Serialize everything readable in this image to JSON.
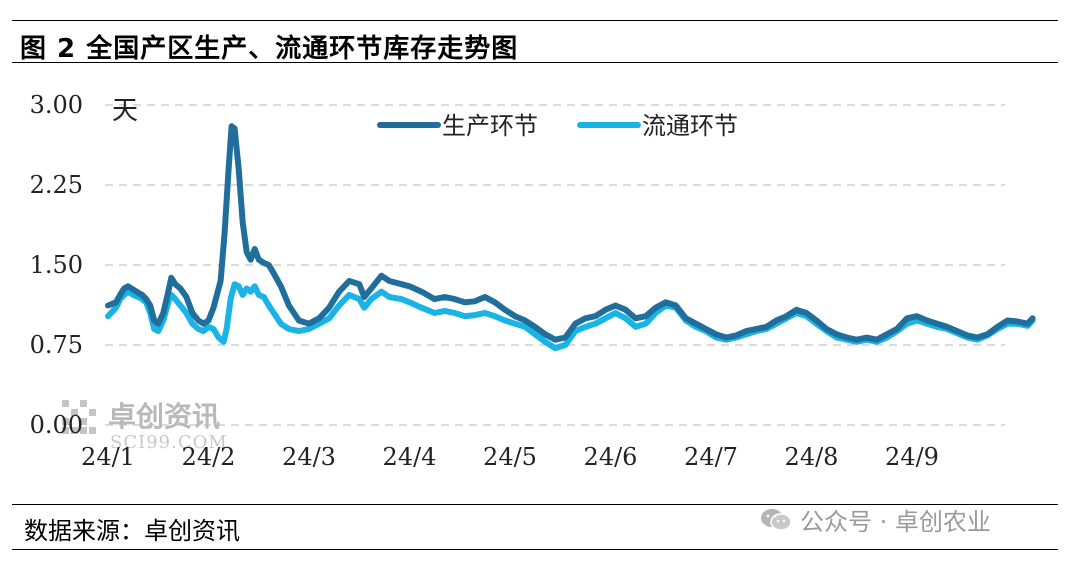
{
  "figure": {
    "title": "图 2  全国产区生产、流通环节库存走势图",
    "source": "数据来源：卓创资讯",
    "watermark_chart": "卓创资讯",
    "watermark_chart_sub": "SCI99.COM",
    "watermark_corner": "公众号 · 卓创农业",
    "icon_corner": "wechat-icon"
  },
  "chart_data": {
    "type": "line",
    "unit_label": "天",
    "ylim": [
      0,
      3
    ],
    "yticks": [
      "0.00",
      "0.75",
      "1.50",
      "2.25",
      "3.00"
    ],
    "x_ticks": [
      "24/1",
      "24/2",
      "24/3",
      "24/4",
      "24/5",
      "24/6",
      "24/7",
      "24/8",
      "24/9"
    ],
    "grid": "horizontal-dashed",
    "legend_position": "top-center",
    "series": [
      {
        "name": "生产环节",
        "color": "#1f6e9c",
        "points": [
          [
            0.0,
            1.12
          ],
          [
            0.08,
            1.15
          ],
          [
            0.12,
            1.22
          ],
          [
            0.16,
            1.28
          ],
          [
            0.2,
            1.3
          ],
          [
            0.25,
            1.27
          ],
          [
            0.3,
            1.24
          ],
          [
            0.34,
            1.22
          ],
          [
            0.38,
            1.18
          ],
          [
            0.42,
            1.12
          ],
          [
            0.46,
            0.98
          ],
          [
            0.5,
            0.95
          ],
          [
            0.55,
            1.05
          ],
          [
            0.6,
            1.25
          ],
          [
            0.63,
            1.38
          ],
          [
            0.67,
            1.32
          ],
          [
            0.72,
            1.28
          ],
          [
            0.78,
            1.2
          ],
          [
            0.84,
            1.05
          ],
          [
            0.9,
            0.98
          ],
          [
            0.95,
            0.95
          ],
          [
            1.0,
            0.98
          ],
          [
            1.05,
            1.1
          ],
          [
            1.12,
            1.35
          ],
          [
            1.16,
            1.8
          ],
          [
            1.2,
            2.4
          ],
          [
            1.23,
            2.8
          ],
          [
            1.26,
            2.78
          ],
          [
            1.3,
            2.4
          ],
          [
            1.34,
            1.9
          ],
          [
            1.38,
            1.62
          ],
          [
            1.42,
            1.55
          ],
          [
            1.46,
            1.65
          ],
          [
            1.5,
            1.55
          ],
          [
            1.55,
            1.52
          ],
          [
            1.6,
            1.5
          ],
          [
            1.65,
            1.42
          ],
          [
            1.72,
            1.3
          ],
          [
            1.8,
            1.12
          ],
          [
            1.9,
            0.98
          ],
          [
            2.0,
            0.95
          ],
          [
            2.1,
            1.0
          ],
          [
            2.2,
            1.1
          ],
          [
            2.3,
            1.25
          ],
          [
            2.4,
            1.35
          ],
          [
            2.5,
            1.32
          ],
          [
            2.55,
            1.2
          ],
          [
            2.62,
            1.28
          ],
          [
            2.72,
            1.4
          ],
          [
            2.8,
            1.35
          ],
          [
            2.92,
            1.32
          ],
          [
            3.0,
            1.3
          ],
          [
            3.12,
            1.25
          ],
          [
            3.25,
            1.18
          ],
          [
            3.35,
            1.2
          ],
          [
            3.45,
            1.18
          ],
          [
            3.55,
            1.15
          ],
          [
            3.65,
            1.16
          ],
          [
            3.75,
            1.2
          ],
          [
            3.85,
            1.15
          ],
          [
            3.95,
            1.08
          ],
          [
            4.05,
            1.02
          ],
          [
            4.15,
            0.98
          ],
          [
            4.25,
            0.92
          ],
          [
            4.35,
            0.85
          ],
          [
            4.45,
            0.8
          ],
          [
            4.55,
            0.82
          ],
          [
            4.65,
            0.95
          ],
          [
            4.75,
            1.0
          ],
          [
            4.85,
            1.02
          ],
          [
            4.95,
            1.08
          ],
          [
            5.05,
            1.12
          ],
          [
            5.15,
            1.08
          ],
          [
            5.25,
            1.0
          ],
          [
            5.35,
            1.02
          ],
          [
            5.45,
            1.1
          ],
          [
            5.55,
            1.15
          ],
          [
            5.65,
            1.12
          ],
          [
            5.75,
            1.0
          ],
          [
            5.85,
            0.95
          ],
          [
            5.95,
            0.9
          ],
          [
            6.05,
            0.85
          ],
          [
            6.15,
            0.82
          ],
          [
            6.25,
            0.84
          ],
          [
            6.35,
            0.88
          ],
          [
            6.45,
            0.9
          ],
          [
            6.55,
            0.92
          ],
          [
            6.65,
            0.98
          ],
          [
            6.75,
            1.02
          ],
          [
            6.85,
            1.08
          ],
          [
            6.95,
            1.05
          ],
          [
            7.05,
            0.98
          ],
          [
            7.15,
            0.9
          ],
          [
            7.25,
            0.85
          ],
          [
            7.35,
            0.82
          ],
          [
            7.45,
            0.8
          ],
          [
            7.55,
            0.82
          ],
          [
            7.65,
            0.8
          ],
          [
            7.75,
            0.85
          ],
          [
            7.85,
            0.9
          ],
          [
            7.95,
            1.0
          ],
          [
            8.05,
            1.02
          ],
          [
            8.15,
            0.98
          ],
          [
            8.25,
            0.95
          ],
          [
            8.35,
            0.92
          ],
          [
            8.45,
            0.88
          ],
          [
            8.55,
            0.84
          ],
          [
            8.65,
            0.82
          ],
          [
            8.75,
            0.85
          ],
          [
            8.85,
            0.92
          ],
          [
            8.95,
            0.98
          ],
          [
            9.05,
            0.97
          ],
          [
            9.15,
            0.95
          ],
          [
            9.2,
            1.0
          ]
        ]
      },
      {
        "name": "流通环节",
        "color": "#19b3e6",
        "points": [
          [
            0.0,
            1.02
          ],
          [
            0.08,
            1.1
          ],
          [
            0.12,
            1.18
          ],
          [
            0.16,
            1.22
          ],
          [
            0.2,
            1.25
          ],
          [
            0.25,
            1.22
          ],
          [
            0.3,
            1.2
          ],
          [
            0.34,
            1.18
          ],
          [
            0.38,
            1.15
          ],
          [
            0.42,
            1.05
          ],
          [
            0.46,
            0.9
          ],
          [
            0.5,
            0.88
          ],
          [
            0.55,
            0.98
          ],
          [
            0.6,
            1.15
          ],
          [
            0.63,
            1.22
          ],
          [
            0.67,
            1.18
          ],
          [
            0.72,
            1.12
          ],
          [
            0.78,
            1.05
          ],
          [
            0.84,
            0.95
          ],
          [
            0.9,
            0.9
          ],
          [
            0.95,
            0.88
          ],
          [
            1.0,
            0.92
          ],
          [
            1.05,
            0.9
          ],
          [
            1.1,
            0.82
          ],
          [
            1.15,
            0.78
          ],
          [
            1.18,
            0.9
          ],
          [
            1.22,
            1.18
          ],
          [
            1.26,
            1.32
          ],
          [
            1.3,
            1.3
          ],
          [
            1.34,
            1.22
          ],
          [
            1.38,
            1.28
          ],
          [
            1.42,
            1.25
          ],
          [
            1.46,
            1.3
          ],
          [
            1.5,
            1.22
          ],
          [
            1.55,
            1.2
          ],
          [
            1.6,
            1.12
          ],
          [
            1.65,
            1.05
          ],
          [
            1.72,
            0.95
          ],
          [
            1.8,
            0.9
          ],
          [
            1.9,
            0.88
          ],
          [
            2.0,
            0.9
          ],
          [
            2.1,
            0.95
          ],
          [
            2.2,
            1.0
          ],
          [
            2.3,
            1.12
          ],
          [
            2.4,
            1.22
          ],
          [
            2.5,
            1.18
          ],
          [
            2.55,
            1.1
          ],
          [
            2.62,
            1.18
          ],
          [
            2.72,
            1.25
          ],
          [
            2.8,
            1.2
          ],
          [
            2.92,
            1.18
          ],
          [
            3.0,
            1.15
          ],
          [
            3.12,
            1.1
          ],
          [
            3.25,
            1.05
          ],
          [
            3.35,
            1.07
          ],
          [
            3.45,
            1.05
          ],
          [
            3.55,
            1.02
          ],
          [
            3.65,
            1.03
          ],
          [
            3.75,
            1.05
          ],
          [
            3.85,
            1.02
          ],
          [
            3.95,
            0.98
          ],
          [
            4.05,
            0.95
          ],
          [
            4.15,
            0.92
          ],
          [
            4.25,
            0.85
          ],
          [
            4.35,
            0.78
          ],
          [
            4.45,
            0.72
          ],
          [
            4.55,
            0.75
          ],
          [
            4.65,
            0.88
          ],
          [
            4.75,
            0.92
          ],
          [
            4.85,
            0.95
          ],
          [
            4.95,
            1.0
          ],
          [
            5.05,
            1.05
          ],
          [
            5.15,
            1.0
          ],
          [
            5.25,
            0.92
          ],
          [
            5.35,
            0.95
          ],
          [
            5.45,
            1.05
          ],
          [
            5.55,
            1.12
          ],
          [
            5.65,
            1.1
          ],
          [
            5.75,
            0.98
          ],
          [
            5.85,
            0.92
          ],
          [
            5.95,
            0.88
          ],
          [
            6.05,
            0.82
          ],
          [
            6.15,
            0.8
          ],
          [
            6.25,
            0.82
          ],
          [
            6.35,
            0.85
          ],
          [
            6.45,
            0.88
          ],
          [
            6.55,
            0.9
          ],
          [
            6.65,
            0.95
          ],
          [
            6.75,
            1.0
          ],
          [
            6.85,
            1.05
          ],
          [
            6.95,
            1.02
          ],
          [
            7.05,
            0.95
          ],
          [
            7.15,
            0.88
          ],
          [
            7.25,
            0.82
          ],
          [
            7.35,
            0.8
          ],
          [
            7.45,
            0.78
          ],
          [
            7.55,
            0.8
          ],
          [
            7.65,
            0.78
          ],
          [
            7.75,
            0.82
          ],
          [
            7.85,
            0.88
          ],
          [
            7.95,
            0.95
          ],
          [
            8.05,
            0.98
          ],
          [
            8.15,
            0.95
          ],
          [
            8.25,
            0.92
          ],
          [
            8.35,
            0.9
          ],
          [
            8.45,
            0.86
          ],
          [
            8.55,
            0.82
          ],
          [
            8.65,
            0.8
          ],
          [
            8.75,
            0.84
          ],
          [
            8.85,
            0.9
          ],
          [
            8.95,
            0.95
          ],
          [
            9.05,
            0.95
          ],
          [
            9.15,
            0.93
          ],
          [
            9.2,
            0.98
          ]
        ]
      }
    ]
  }
}
